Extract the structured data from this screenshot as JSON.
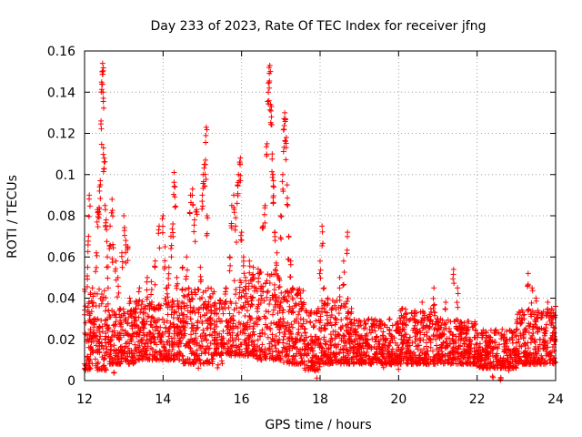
{
  "chart_data": {
    "type": "scatter",
    "title": "Day 233 of 2023, Rate Of TEC Index for receiver jfng",
    "xlabel": "GPS time / hours",
    "ylabel": "ROTI / TECUs",
    "xlim": [
      12,
      24
    ],
    "ylim": [
      0,
      0.16
    ],
    "xticks": [
      12,
      14,
      16,
      18,
      20,
      22,
      24
    ],
    "xtick_labels": [
      "12",
      "14",
      "16",
      "18",
      "20",
      "22",
      "24"
    ],
    "yticks": [
      0,
      0.02,
      0.04,
      0.06,
      0.08,
      0.1,
      0.12,
      0.14,
      0.16
    ],
    "ytick_labels": [
      "0",
      "0.02",
      "0.04",
      "0.06",
      "0.08",
      "0.1",
      "0.12",
      "0.14",
      "0.16"
    ],
    "grid": true,
    "marker": "+",
    "color": "#ff0000",
    "series": [
      {
        "name": "ROTI",
        "points": [
          [
            12.05,
            0.019
          ],
          [
            12.08,
            0.055
          ],
          [
            12.1,
            0.07
          ],
          [
            12.12,
            0.09
          ],
          [
            12.15,
            0.025
          ],
          [
            12.2,
            0.045
          ],
          [
            12.25,
            0.03
          ],
          [
            12.3,
            0.062
          ],
          [
            12.33,
            0.083
          ],
          [
            12.35,
            0.082
          ],
          [
            12.38,
            0.092
          ],
          [
            12.4,
            0.097
          ],
          [
            12.42,
            0.126
          ],
          [
            12.44,
            0.144
          ],
          [
            12.45,
            0.15
          ],
          [
            12.46,
            0.154
          ],
          [
            12.47,
            0.14
          ],
          [
            12.48,
            0.113
          ],
          [
            12.5,
            0.108
          ],
          [
            12.52,
            0.085
          ],
          [
            12.55,
            0.078
          ],
          [
            12.58,
            0.06
          ],
          [
            12.6,
            0.045
          ],
          [
            12.65,
            0.075
          ],
          [
            12.7,
            0.088
          ],
          [
            12.72,
            0.066
          ],
          [
            12.75,
            0.004
          ],
          [
            12.8,
            0.058
          ],
          [
            12.85,
            0.05
          ],
          [
            12.9,
            0.035
          ],
          [
            12.95,
            0.062
          ],
          [
            13.0,
            0.08
          ],
          [
            13.05,
            0.068
          ],
          [
            13.1,
            0.065
          ],
          [
            13.15,
            0.04
          ],
          [
            13.2,
            0.028
          ],
          [
            13.3,
            0.035
          ],
          [
            13.4,
            0.045
          ],
          [
            13.5,
            0.03
          ],
          [
            13.6,
            0.05
          ],
          [
            13.7,
            0.048
          ],
          [
            13.8,
            0.058
          ],
          [
            13.9,
            0.075
          ],
          [
            14.0,
            0.08
          ],
          [
            14.05,
            0.065
          ],
          [
            14.1,
            0.045
          ],
          [
            14.15,
            0.055
          ],
          [
            14.2,
            0.07
          ],
          [
            14.25,
            0.076
          ],
          [
            14.28,
            0.101
          ],
          [
            14.3,
            0.094
          ],
          [
            14.35,
            0.05
          ],
          [
            14.4,
            0.035
          ],
          [
            14.5,
            0.055
          ],
          [
            14.6,
            0.06
          ],
          [
            14.7,
            0.09
          ],
          [
            14.75,
            0.093
          ],
          [
            14.8,
            0.078
          ],
          [
            14.85,
            0.083
          ],
          [
            14.9,
            0.006
          ],
          [
            14.95,
            0.055
          ],
          [
            15.0,
            0.09
          ],
          [
            15.02,
            0.1
          ],
          [
            15.05,
            0.105
          ],
          [
            15.08,
            0.107
          ],
          [
            15.1,
            0.123
          ],
          [
            15.12,
            0.08
          ],
          [
            15.15,
            0.045
          ],
          [
            15.2,
            0.03
          ],
          [
            15.3,
            0.025
          ],
          [
            15.4,
            0.018
          ],
          [
            15.5,
            0.02
          ],
          [
            15.6,
            0.045
          ],
          [
            15.7,
            0.06
          ],
          [
            15.75,
            0.085
          ],
          [
            15.8,
            0.09
          ],
          [
            15.85,
            0.079
          ],
          [
            15.9,
            0.095
          ],
          [
            15.92,
            0.1
          ],
          [
            15.95,
            0.106
          ],
          [
            15.97,
            0.108
          ],
          [
            16.0,
            0.072
          ],
          [
            16.05,
            0.06
          ],
          [
            16.1,
            0.05
          ],
          [
            16.2,
            0.058
          ],
          [
            16.3,
            0.055
          ],
          [
            16.4,
            0.035
          ],
          [
            16.5,
            0.045
          ],
          [
            16.55,
            0.075
          ],
          [
            16.6,
            0.085
          ],
          [
            16.65,
            0.115
          ],
          [
            16.68,
            0.14
          ],
          [
            16.7,
            0.152
          ],
          [
            16.72,
            0.153
          ],
          [
            16.74,
            0.134
          ],
          [
            16.76,
            0.128
          ],
          [
            16.78,
            0.11
          ],
          [
            16.8,
            0.1
          ],
          [
            16.82,
            0.094
          ],
          [
            16.85,
            0.072
          ],
          [
            16.9,
            0.062
          ],
          [
            16.95,
            0.05
          ],
          [
            17.0,
            0.08
          ],
          [
            17.05,
            0.1
          ],
          [
            17.08,
            0.122
          ],
          [
            17.1,
            0.13
          ],
          [
            17.12,
            0.127
          ],
          [
            17.14,
            0.118
          ],
          [
            17.16,
            0.095
          ],
          [
            17.2,
            0.07
          ],
          [
            17.25,
            0.058
          ],
          [
            17.3,
            0.045
          ],
          [
            17.4,
            0.03
          ],
          [
            17.5,
            0.02
          ],
          [
            17.6,
            0.025
          ],
          [
            17.7,
            0.018
          ],
          [
            17.8,
            0.015
          ],
          [
            17.9,
            0.012
          ],
          [
            18.0,
            0.058
          ],
          [
            18.05,
            0.075
          ],
          [
            18.1,
            0.045
          ],
          [
            18.2,
            0.04
          ],
          [
            18.3,
            0.035
          ],
          [
            18.4,
            0.03
          ],
          [
            18.5,
            0.05
          ],
          [
            18.6,
            0.058
          ],
          [
            18.7,
            0.072
          ],
          [
            18.8,
            0.035
          ],
          [
            18.9,
            0.025
          ],
          [
            19.0,
            0.02
          ],
          [
            19.2,
            0.018
          ],
          [
            19.4,
            0.02
          ],
          [
            19.6,
            0.015
          ],
          [
            19.8,
            0.012
          ],
          [
            20.0,
            0.015
          ],
          [
            20.1,
            0.035
          ],
          [
            20.2,
            0.03
          ],
          [
            20.4,
            0.033
          ],
          [
            20.6,
            0.038
          ],
          [
            20.8,
            0.032
          ],
          [
            20.9,
            0.045
          ],
          [
            21.0,
            0.03
          ],
          [
            21.2,
            0.038
          ],
          [
            21.4,
            0.054
          ],
          [
            21.5,
            0.045
          ],
          [
            21.6,
            0.025
          ],
          [
            21.8,
            0.02
          ],
          [
            22.0,
            0.018
          ],
          [
            22.2,
            0.015
          ],
          [
            22.4,
            0.012
          ],
          [
            22.6,
            0.01
          ],
          [
            22.8,
            0.015
          ],
          [
            23.0,
            0.025
          ],
          [
            23.2,
            0.03
          ],
          [
            23.3,
            0.052
          ],
          [
            23.4,
            0.045
          ],
          [
            23.5,
            0.04
          ],
          [
            23.6,
            0.02
          ],
          [
            23.7,
            0.025
          ],
          [
            23.8,
            0.038
          ],
          [
            23.9,
            0.035
          ],
          [
            24.0,
            0.036
          ]
        ],
        "bands": [
          [
            12.0,
            12.6,
            0.005,
            0.045
          ],
          [
            12.6,
            13.3,
            0.008,
            0.035
          ],
          [
            13.3,
            13.9,
            0.01,
            0.04
          ],
          [
            13.9,
            14.5,
            0.01,
            0.04
          ],
          [
            14.5,
            15.3,
            0.008,
            0.045
          ],
          [
            15.3,
            15.8,
            0.012,
            0.04
          ],
          [
            15.8,
            16.4,
            0.012,
            0.05
          ],
          [
            16.4,
            17.0,
            0.01,
            0.055
          ],
          [
            17.0,
            17.6,
            0.008,
            0.045
          ],
          [
            17.6,
            18.0,
            0.005,
            0.035
          ],
          [
            18.0,
            18.8,
            0.008,
            0.04
          ],
          [
            18.8,
            20.0,
            0.008,
            0.03
          ],
          [
            20.0,
            21.0,
            0.008,
            0.035
          ],
          [
            21.0,
            22.0,
            0.008,
            0.03
          ],
          [
            22.0,
            23.0,
            0.006,
            0.025
          ],
          [
            23.0,
            24.0,
            0.008,
            0.035
          ]
        ]
      }
    ]
  }
}
